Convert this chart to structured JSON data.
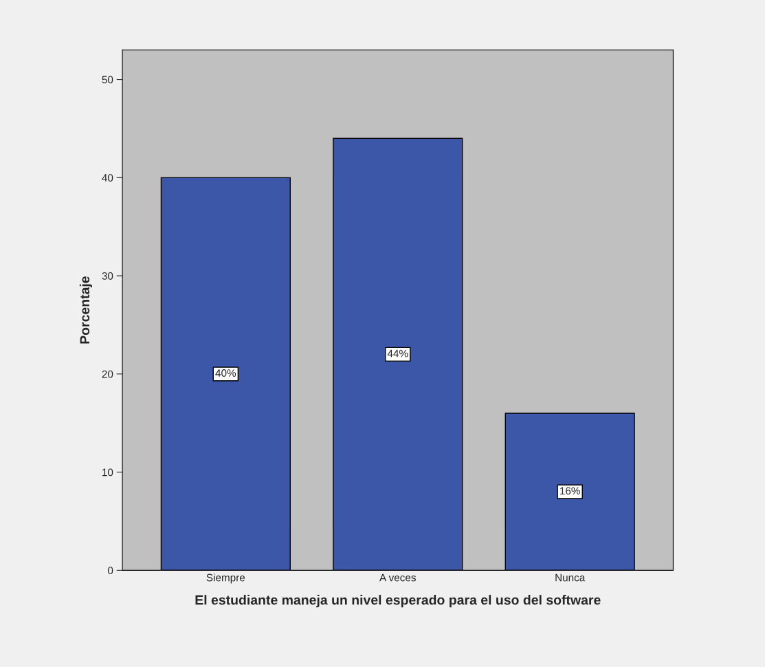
{
  "chart_data": {
    "type": "bar",
    "xlabel": "El estudiante maneja un nivel esperado para el uso del software",
    "ylabel": "Porcentaje",
    "categories": [
      "Siempre",
      "A veces",
      "Nunca"
    ],
    "values": [
      40,
      44,
      16
    ],
    "value_labels": [
      "40%",
      "44%",
      "16%"
    ],
    "color": "#3c56a8",
    "ylim": [
      0,
      53
    ],
    "yticks": [
      0,
      10,
      20,
      30,
      40,
      50
    ],
    "grid": false
  }
}
